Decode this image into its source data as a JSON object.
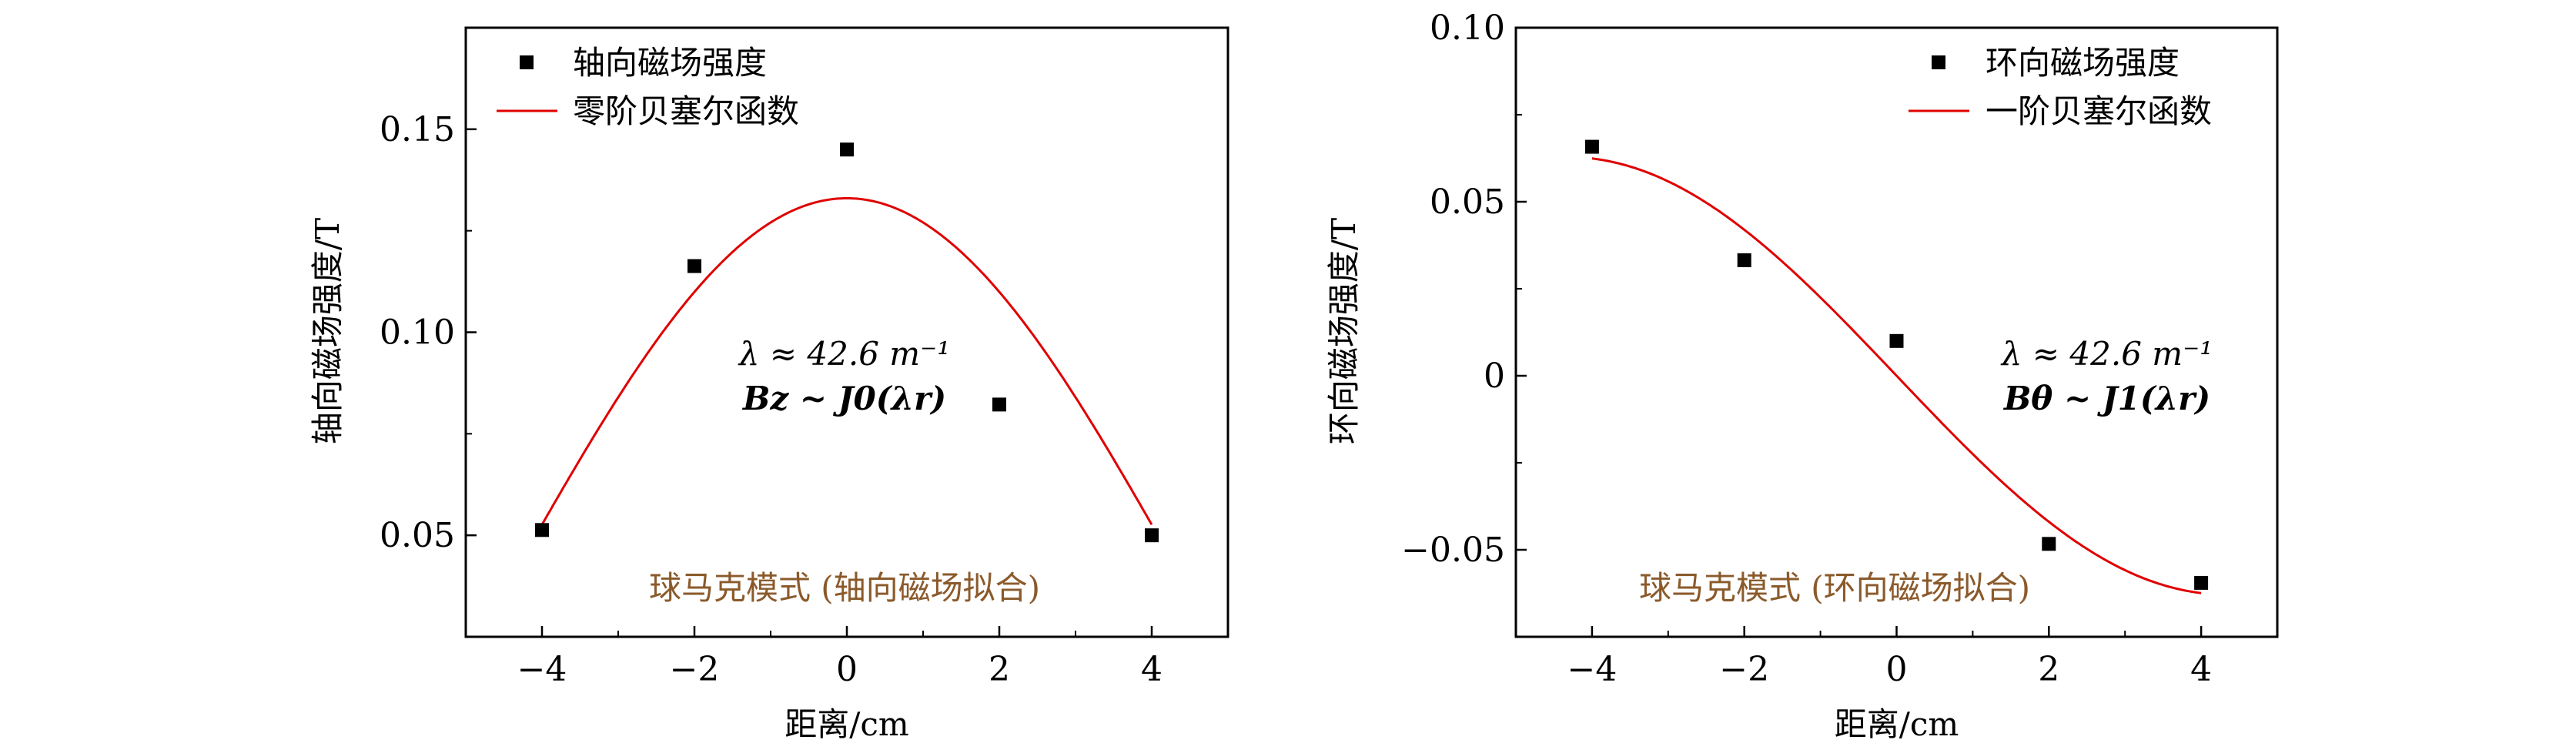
{
  "colors": {
    "fit": "#e00000",
    "points": "#000000",
    "mode_label": "#8b5a2b"
  },
  "chart_data": [
    {
      "type": "scatter",
      "title": "",
      "xlabel": "距离/cm",
      "ylabel": "轴向磁场强度/T",
      "xlim": [
        -5,
        5
      ],
      "ylim": [
        0.025,
        0.175
      ],
      "xticks": [
        -4,
        -2,
        0,
        2,
        4
      ],
      "xtick_labels": [
        "−4",
        "−2",
        "0",
        "2",
        "4"
      ],
      "yticks": [
        0.05,
        0.1,
        0.15
      ],
      "ytick_labels": [
        "0.05",
        "0.10",
        "0.15"
      ],
      "legend_position": "top-left",
      "series": [
        {
          "name": "轴向磁场强度",
          "kind": "scatter",
          "x": [
            -4,
            -2,
            0,
            2,
            4
          ],
          "y": [
            0.0513,
            0.1163,
            0.145,
            0.0822,
            0.05
          ]
        },
        {
          "name": "零阶贝塞尔函数",
          "kind": "line",
          "function": "A*J0(lambda*r)",
          "amplitude": 0.133,
          "lambda": 42.6,
          "x_range": [
            -4,
            4
          ]
        }
      ],
      "annotations": {
        "line1": "λ ≈ 42.6 m⁻¹",
        "line2": "Bz ~ J0(λr)",
        "mode": "球马克模式 (轴向磁场拟合)"
      }
    },
    {
      "type": "scatter",
      "title": "",
      "xlabel": "距离/cm",
      "ylabel": "环向磁场强度/T",
      "xlim": [
        -5,
        5
      ],
      "ylim": [
        -0.075,
        0.1
      ],
      "xticks": [
        -4,
        -2,
        0,
        2,
        4
      ],
      "xtick_labels": [
        "−4",
        "−2",
        "0",
        "2",
        "4"
      ],
      "yticks": [
        -0.05,
        0,
        0.05,
        0.1
      ],
      "ytick_labels": [
        "−0.05",
        "0",
        "0.05",
        "0.10"
      ],
      "legend_position": "top-right",
      "series": [
        {
          "name": "环向磁场强度",
          "kind": "scatter",
          "x": [
            -4,
            -2,
            0,
            2,
            4
          ],
          "y": [
            0.0658,
            0.0332,
            0.01,
            -0.0483,
            -0.0595
          ]
        },
        {
          "name": "一阶贝塞尔函数",
          "kind": "line",
          "function": "-A*J1(lambda*r)",
          "amplitude": 0.108,
          "lambda": 42.6,
          "x_range": [
            -4,
            4
          ]
        }
      ],
      "annotations": {
        "line1": "λ ≈ 42.6 m⁻¹",
        "line2": "Bθ ~ J1(λr)",
        "mode": "球马克模式 (环向磁场拟合)"
      }
    }
  ]
}
